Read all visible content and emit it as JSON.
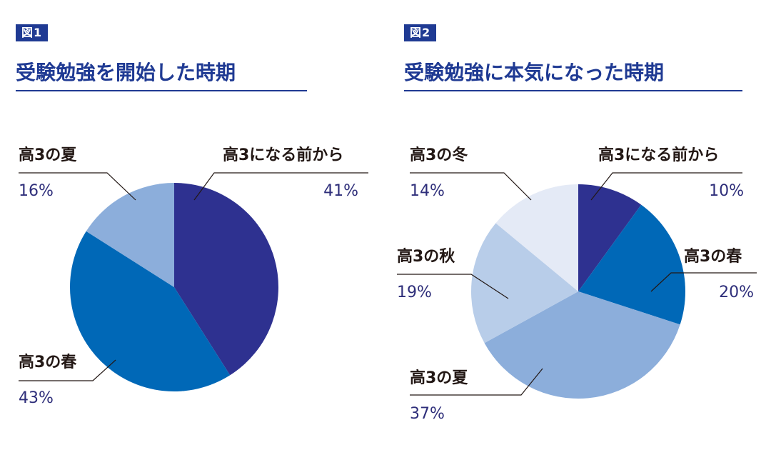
{
  "figures": [
    {
      "badge": "図1",
      "title": "受験勉強を開始した時期"
    },
    {
      "badge": "図2",
      "title": "受験勉強に本気になった時期"
    }
  ],
  "colors": {
    "brand": "#1f3a93",
    "label_pct": "#2e2e7a",
    "leader": "#231815"
  },
  "chart_data": [
    {
      "type": "pie",
      "title": "受験勉強を開始した時期",
      "start": "12 o'clock",
      "direction": "clockwise",
      "slices": [
        {
          "label": "高3になる前から",
          "value": 41,
          "display": "41%",
          "color": "#2e3190"
        },
        {
          "label": "高3の春",
          "value": 43,
          "display": "43%",
          "color": "#0068b7"
        },
        {
          "label": "高3の夏",
          "value": 16,
          "display": "16%",
          "color": "#8caedb"
        }
      ]
    },
    {
      "type": "pie",
      "title": "受験勉強に本気になった時期",
      "start": "12 o'clock",
      "direction": "clockwise",
      "slices": [
        {
          "label": "高3になる前から",
          "value": 10,
          "display": "10%",
          "color": "#2e3190"
        },
        {
          "label": "高3の春",
          "value": 20,
          "display": "20%",
          "color": "#0068b7"
        },
        {
          "label": "高3の夏",
          "value": 37,
          "display": "37%",
          "color": "#8caedb"
        },
        {
          "label": "高3の秋",
          "value": 19,
          "display": "19%",
          "color": "#b8cde9"
        },
        {
          "label": "高3の冬",
          "value": 14,
          "display": "14%",
          "color": "#e4eaf6"
        }
      ]
    }
  ]
}
